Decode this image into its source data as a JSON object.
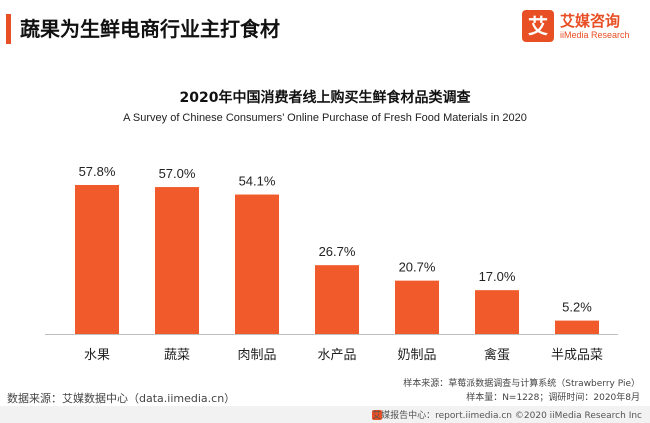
{
  "header": {
    "title": "蔬果为生鲜电商行业主打食材",
    "accent_color": "#e84f24"
  },
  "logo": {
    "mark": "艾",
    "cn": "艾媒咨询",
    "en": "iiMedia Research",
    "color": "#e84f24"
  },
  "chart_data": {
    "type": "bar",
    "title": "2020年中国消费者线上购买生鲜食材品类调查",
    "subtitle": "A Survey of Chinese Consumers’ Online Purchase of Fresh Food Materials in 2020",
    "categories": [
      "水果",
      "蔬菜",
      "肉制品",
      "水产品",
      "奶制品",
      "禽蛋",
      "半成品菜"
    ],
    "values": [
      57.8,
      57.0,
      54.1,
      26.7,
      20.7,
      17.0,
      5.2
    ],
    "labels": [
      "57.8%",
      "57.0%",
      "54.1%",
      "26.7%",
      "20.7%",
      "17.0%",
      "5.2%"
    ],
    "unit": "%",
    "ylim": [
      0,
      57.8
    ],
    "bar_color": "#f15a2b",
    "grid": false,
    "xlabel": "",
    "ylabel": ""
  },
  "source": {
    "text": "数据来源：艾媒数据中心（data.iimedia.cn）",
    "sample_source": "样本来源：草莓派数据调查与计算系统（Strawberry Pie）",
    "sample_size": "样本量：N=1228；调研时间：2020年8月"
  },
  "footer": {
    "report_center": "艾媒报告中心：report.iimedia.cn",
    "copyright": "©2020  iiMedia Research  Inc",
    "icon_color": "#e84f24"
  }
}
